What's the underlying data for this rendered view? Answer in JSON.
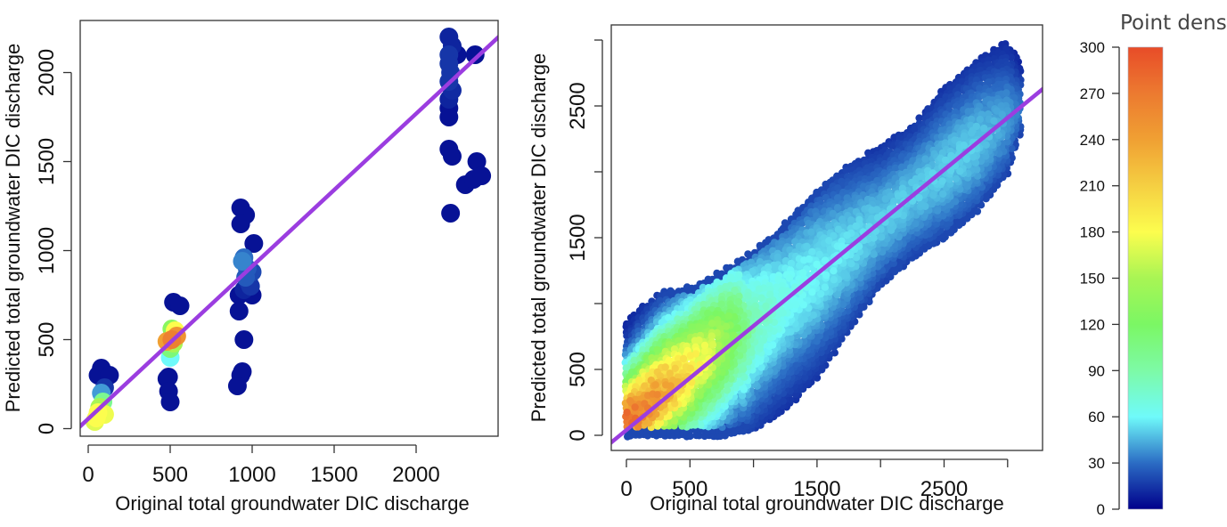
{
  "chart_data": [
    {
      "type": "scatter",
      "title": "",
      "xlabel": "Original total groundwater DIC discharge",
      "ylabel": "Predicted total groundwater DIC discharge",
      "xlim": [
        -60,
        2500
      ],
      "ylim": [
        -40,
        2230
      ],
      "xticks": [
        0,
        500,
        1000,
        1500,
        2000
      ],
      "yticks": [
        0,
        500,
        1000,
        1500,
        2000
      ],
      "fit_line": {
        "intercept": 55,
        "slope": 0.857,
        "color": "#9b3de0"
      },
      "points_fields": [
        "x",
        "y",
        "density"
      ],
      "points": [
        [
          2200,
          2200,
          10
        ],
        [
          2220,
          2150,
          10
        ],
        [
          2200,
          2100,
          15
        ],
        [
          2250,
          2100,
          5
        ],
        [
          2360,
          2100,
          5
        ],
        [
          2200,
          2050,
          15
        ],
        [
          2210,
          2000,
          15
        ],
        [
          2200,
          1950,
          15
        ],
        [
          2220,
          1900,
          12
        ],
        [
          2200,
          1850,
          10
        ],
        [
          2200,
          1800,
          5
        ],
        [
          2200,
          1750,
          5
        ],
        [
          2200,
          1570,
          5
        ],
        [
          2220,
          1530,
          5
        ],
        [
          2210,
          1210,
          5
        ],
        [
          2370,
          1500,
          5
        ],
        [
          2300,
          1370,
          5
        ],
        [
          2350,
          1400,
          5
        ],
        [
          2400,
          1420,
          5
        ],
        [
          930,
          1240,
          5
        ],
        [
          960,
          1200,
          5
        ],
        [
          930,
          1150,
          5
        ],
        [
          1010,
          1040,
          5
        ],
        [
          920,
          750,
          5
        ],
        [
          1000,
          750,
          5
        ],
        [
          920,
          660,
          5
        ],
        [
          950,
          500,
          5
        ],
        [
          940,
          320,
          5
        ],
        [
          930,
          300,
          5
        ],
        [
          910,
          240,
          5
        ],
        [
          990,
          800,
          15
        ],
        [
          950,
          780,
          10
        ],
        [
          980,
          820,
          15
        ],
        [
          1000,
          880,
          20
        ],
        [
          960,
          850,
          25
        ],
        [
          970,
          900,
          25
        ],
        [
          940,
          940,
          35
        ],
        [
          950,
          960,
          30
        ],
        [
          490,
          290,
          5
        ],
        [
          480,
          280,
          5
        ],
        [
          490,
          210,
          5
        ],
        [
          500,
          150,
          5
        ],
        [
          520,
          710,
          5
        ],
        [
          560,
          690,
          5
        ],
        [
          500,
          400,
          60
        ],
        [
          500,
          450,
          110
        ],
        [
          520,
          480,
          150
        ],
        [
          530,
          550,
          180
        ],
        [
          510,
          560,
          130
        ],
        [
          480,
          490,
          240
        ],
        [
          540,
          520,
          250
        ],
        [
          510,
          500,
          265
        ],
        [
          80,
          340,
          5
        ],
        [
          60,
          300,
          5
        ],
        [
          130,
          300,
          5
        ],
        [
          100,
          230,
          15
        ],
        [
          80,
          200,
          40
        ],
        [
          90,
          150,
          100
        ],
        [
          70,
          120,
          150
        ],
        [
          60,
          90,
          180
        ],
        [
          100,
          80,
          175
        ],
        [
          50,
          60,
          180
        ],
        [
          40,
          40,
          170
        ]
      ]
    },
    {
      "type": "scatter",
      "title": "",
      "xlabel": "Original total groundwater DIC discharge",
      "ylabel": "Predicted total groundwater DIC discharge",
      "xlim": [
        -120,
        3280
      ],
      "ylim": [
        -60,
        3120
      ],
      "xticks": [
        0,
        500,
        1000,
        1500,
        2000,
        2500,
        3000
      ],
      "xtick_labels": [
        "0",
        "500",
        "",
        "1500",
        "",
        "2500",
        ""
      ],
      "yticks": [
        0,
        500,
        1000,
        1500,
        2000,
        2500,
        3000
      ],
      "ytick_labels": [
        "0",
        "500",
        "",
        "1500",
        "",
        "2500",
        ""
      ],
      "fit_line": {
        "intercept": 40,
        "slope": 0.79,
        "color": "#9b3de0"
      },
      "envelope_fields": [
        "x",
        "ymin",
        "ymax",
        "peak_density"
      ],
      "envelope": [
        [
          0,
          0,
          880,
          290
        ],
        [
          250,
          0,
          1080,
          250
        ],
        [
          500,
          0,
          1130,
          200
        ],
        [
          750,
          0,
          1250,
          150
        ],
        [
          1000,
          50,
          1400,
          80
        ],
        [
          1250,
          200,
          1600,
          60
        ],
        [
          1500,
          450,
          1850,
          55
        ],
        [
          1750,
          800,
          2050,
          50
        ],
        [
          2000,
          1150,
          2200,
          45
        ],
        [
          2250,
          1350,
          2350,
          45
        ],
        [
          2500,
          1500,
          2650,
          45
        ],
        [
          2750,
          1700,
          2850,
          45
        ],
        [
          3000,
          2000,
          3000,
          35
        ],
        [
          3100,
          2300,
          2850,
          25
        ]
      ]
    }
  ],
  "colorbar": {
    "title": "Point density",
    "range": [
      0,
      300
    ],
    "ticks": [
      "0",
      "30",
      "60",
      "90",
      "120",
      "150",
      "180",
      "210",
      "240",
      "270",
      "300"
    ],
    "colors": [
      "#00008b",
      "#2b6cc4",
      "#6ffafa",
      "#7dfaa6",
      "#7bf764",
      "#a8f554",
      "#fcfd4e",
      "#f5cf42",
      "#f0a033",
      "#ec7a30",
      "#e84c28"
    ]
  }
}
